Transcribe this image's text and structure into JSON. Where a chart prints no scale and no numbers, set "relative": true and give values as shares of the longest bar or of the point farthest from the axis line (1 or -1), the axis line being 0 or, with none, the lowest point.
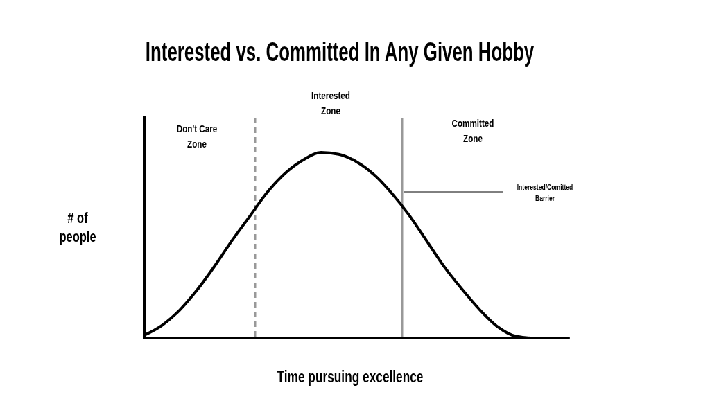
{
  "chart_data": {
    "type": "line",
    "title": "Interested vs. Committed In Any Given Hobby",
    "xlabel": "Time pursuing excellence",
    "ylabel": "# of\npeople",
    "relative": true,
    "categories": [
      null,
      null,
      null,
      null,
      null,
      null,
      null,
      null,
      null,
      null,
      null,
      null,
      null,
      null,
      null,
      null,
      null,
      null,
      null,
      null,
      null,
      null,
      null,
      null,
      null
    ],
    "series": [
      {
        "color": "#000000",
        "values": [
          0.015,
          0.068,
          0.15,
          0.26,
          0.39,
          0.53,
          0.66,
          0.79,
          0.89,
          0.96,
          1.0,
          0.99,
          0.95,
          0.88,
          0.78,
          0.66,
          0.52,
          0.38,
          0.26,
          0.15,
          0.06,
          0.01,
          0,
          0,
          0
        ]
      }
    ],
    "annotations": [
      "Don't Care\nZone",
      "Interested\nZone",
      "Committed\nZone",
      "Interested/Comitted\nBarrier"
    ],
    "marker": "none",
    "line_style": "solid"
  }
}
